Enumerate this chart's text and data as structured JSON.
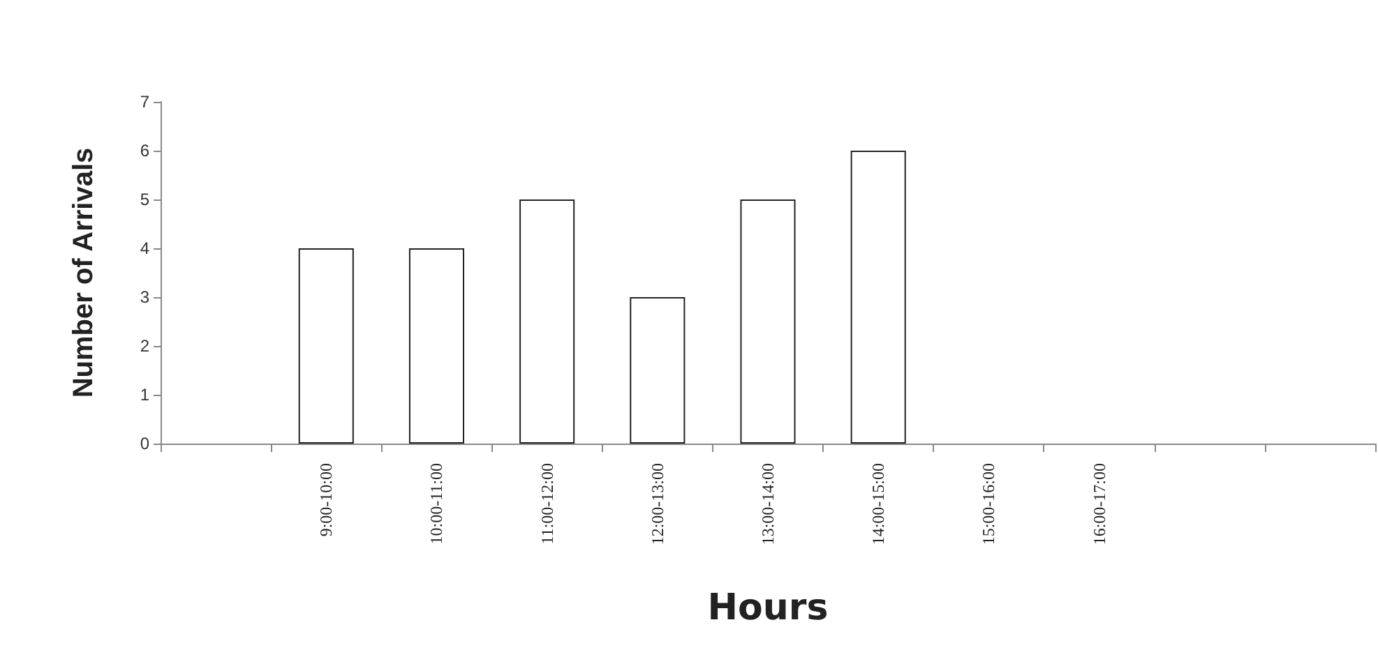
{
  "chart_data": {
    "type": "bar",
    "xlabel": "Hours",
    "ylabel": "Number of Arrivals",
    "categories": [
      null,
      "9:00-10:00",
      "10:00-11:00",
      "11:00-12:00",
      "12:00-13:00",
      "13:00-14:00",
      "14:00-15:00",
      "15:00-16:00",
      "16:00-17:00",
      null,
      null
    ],
    "values": [
      null,
      4,
      4,
      5,
      3,
      5,
      6,
      0,
      0,
      null,
      null
    ],
    "color": "#ffffff",
    "ylim": [
      0,
      7
    ],
    "yticks": [
      0,
      1,
      2,
      3,
      4,
      5,
      6,
      7
    ],
    "grid": false
  }
}
